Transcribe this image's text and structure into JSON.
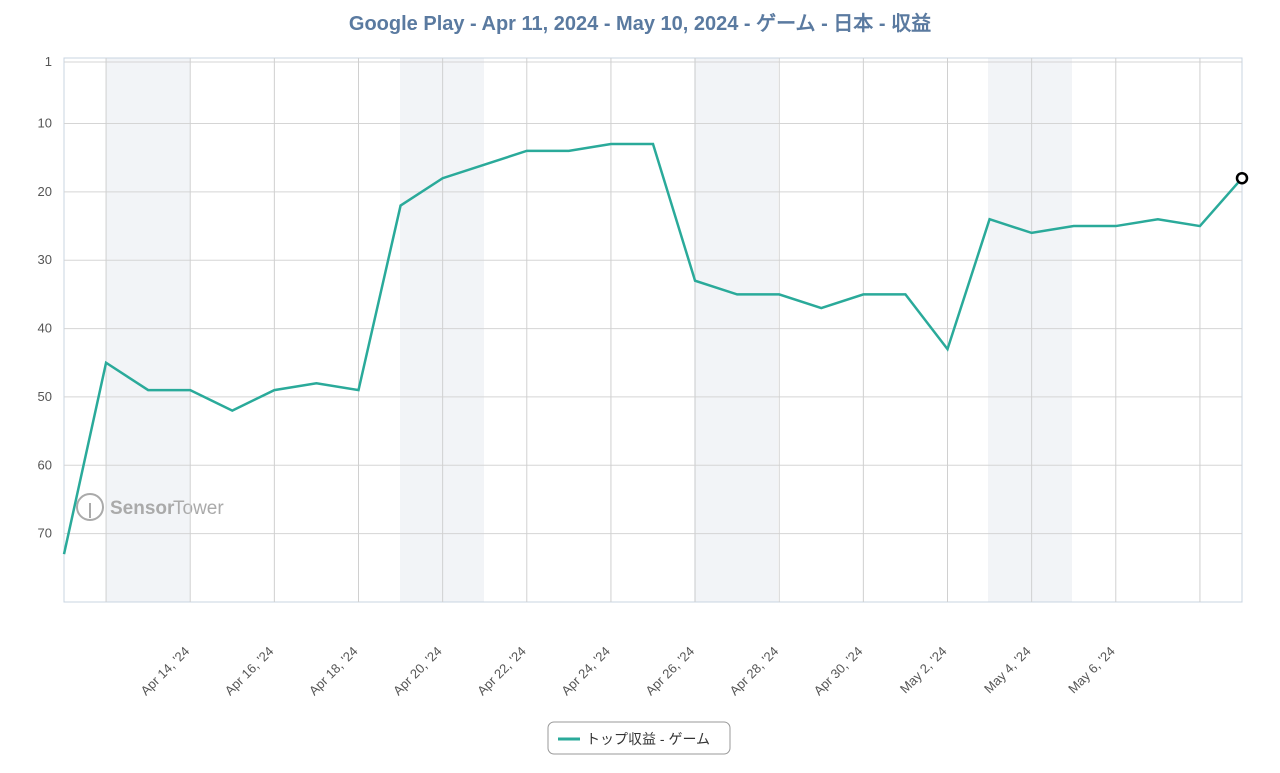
{
  "chart_data": {
    "type": "line",
    "title": "Google Play - Apr 11, 2024 - May 10, 2024 - ゲーム - 日本 - 収益",
    "watermark": [
      "Sensor",
      "Tower"
    ],
    "categories": [
      null,
      null,
      null,
      "Apr 14, '24",
      null,
      "Apr 16, '24",
      null,
      "Apr 18, '24",
      null,
      "Apr 20, '24",
      null,
      "Apr 22, '24",
      null,
      "Apr 24, '24",
      null,
      "Apr 26, '24",
      null,
      "Apr 28, '24",
      null,
      "Apr 30, '24",
      null,
      "May 2, '24",
      null,
      "May 4, '24",
      null,
      "May 6, '24",
      null,
      null,
      null
    ],
    "series": [
      {
        "name": "トップ収益 - ゲーム",
        "color": "#2aaa9a",
        "values": [
          73,
          45,
          49,
          49,
          52,
          49,
          48,
          49,
          22,
          18,
          16,
          14,
          14,
          13,
          13,
          33,
          35,
          35,
          37,
          35,
          35,
          43,
          24,
          26,
          25,
          25,
          24,
          25,
          18
        ]
      }
    ],
    "ylim": [
      1,
      80
    ],
    "yticks": [
      1,
      10,
      20,
      30,
      40,
      50,
      60,
      70
    ],
    "y_reversed": true,
    "grid": true
  }
}
